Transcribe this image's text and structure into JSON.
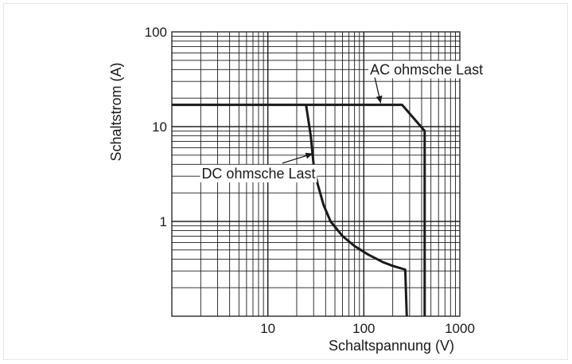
{
  "chart_data": {
    "type": "line",
    "xlabel": "Schaltspannung (V)",
    "ylabel": "Schaltstrom (A)",
    "x_scale": "log",
    "y_scale": "log",
    "xlim": [
      1,
      1000
    ],
    "ylim": [
      0.1,
      100
    ],
    "x_tick_labels": [
      "10",
      "100",
      "1000"
    ],
    "y_tick_labels": [
      "100",
      "10",
      "1"
    ],
    "grid": true,
    "series": [
      {
        "name": "AC ohmsche Last",
        "x": [
          1,
          250,
          430,
          430
        ],
        "y": [
          17,
          17,
          9,
          0.1
        ]
      },
      {
        "name": "DC ohmsche Last",
        "x": [
          25,
          28,
          30,
          33,
          38,
          45,
          60,
          80,
          110,
          160,
          200,
          270,
          280
        ],
        "y": [
          17,
          8,
          4,
          2.5,
          1.5,
          1,
          0.7,
          0.55,
          0.45,
          0.37,
          0.34,
          0.31,
          0.1
        ]
      }
    ],
    "annotations": [
      {
        "text": "AC ohmsche Last",
        "x": 450,
        "y": 40
      },
      {
        "text": "DC ohmsche Last",
        "x": 8,
        "y": 3.2
      }
    ]
  }
}
